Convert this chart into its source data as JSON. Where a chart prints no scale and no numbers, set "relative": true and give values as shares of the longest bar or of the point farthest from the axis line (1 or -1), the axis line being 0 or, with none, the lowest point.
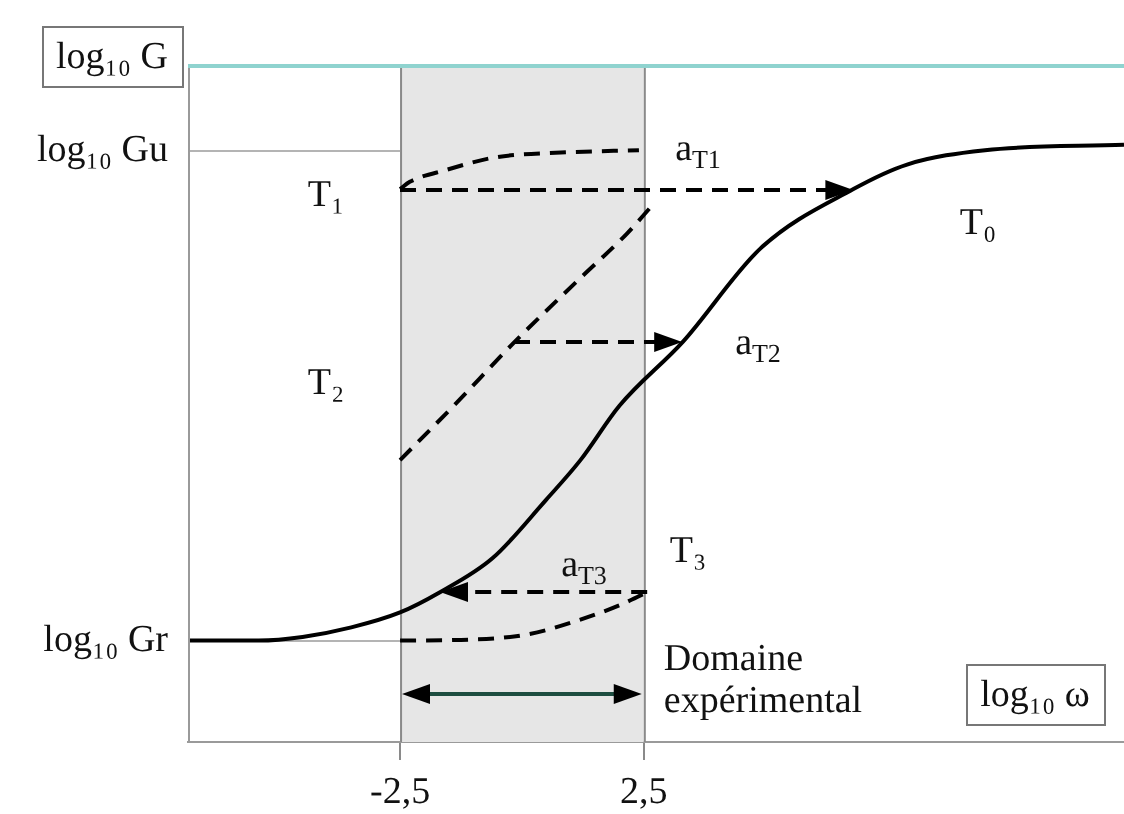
{
  "chart_data": {
    "type": "line",
    "relative": true,
    "xlabel": "log₁₀ ω",
    "ylabel": "log₁₀ G",
    "xlim": [
      -6.85,
      12.35
    ],
    "xticks": [
      {
        "value": -2.5,
        "label": "-2,5"
      },
      {
        "value": 2.5,
        "label": "2,5"
      }
    ],
    "series": [
      {
        "color": "#000000",
        "line_style": "solid",
        "x": [
          -6.85,
          -5.4,
          -4.5,
          -3.5,
          -2.5,
          -1.7,
          -0.6,
          0.5,
          1.2,
          2.0,
          3.3,
          4.9,
          6.8,
          7.9,
          9.5,
          12.35
        ],
        "values": [
          0.17,
          0.17,
          0.176,
          0.192,
          0.217,
          0.25,
          0.308,
          0.406,
          0.472,
          0.563,
          0.67,
          0.827,
          0.926,
          0.967,
          0.991,
          1
        ]
      },
      {
        "color": "#000000",
        "line_style": "dashed",
        "x": [
          -2.5,
          -2.3,
          -1.55,
          -0.55,
          0.8,
          2.4
        ],
        "values": [
          0.926,
          0.938,
          0.958,
          0.979,
          0.987,
          0.991
        ]
      },
      {
        "color": "#000000",
        "line_style": "dashed",
        "x": [
          -2.5,
          -1.4,
          -0.15,
          1.2,
          2.15,
          2.7
        ],
        "values": [
          0.472,
          0.563,
          0.67,
          0.777,
          0.851,
          0.901
        ]
      },
      {
        "color": "#000000",
        "line_style": "dashed",
        "x": [
          -2.5,
          -1.25,
          0.1,
          1.2,
          2.0,
          2.55
        ],
        "values": [
          0.17,
          0.171,
          0.18,
          0.205,
          0.229,
          0.25
        ]
      }
    ],
    "bands": [
      {
        "axis": "x",
        "from": -2.5,
        "to": 2.5,
        "label": "Domaine expérimental",
        "color": "#e6e6e6"
      }
    ],
    "ref_lines": [
      {
        "axis": "y",
        "value": 0.991,
        "label": "log₁₀ Gu",
        "color": "#b4b4b4"
      },
      {
        "axis": "y",
        "value": 0.17,
        "label": "log₁₀ Gr",
        "color": "#b4b4b4"
      }
    ],
    "annotations": [
      "T₁",
      "T₂",
      "T₃",
      "T₀",
      "a$_{T1}$",
      "a$_{T2}$",
      "a$_{T3}$"
    ]
  }
}
